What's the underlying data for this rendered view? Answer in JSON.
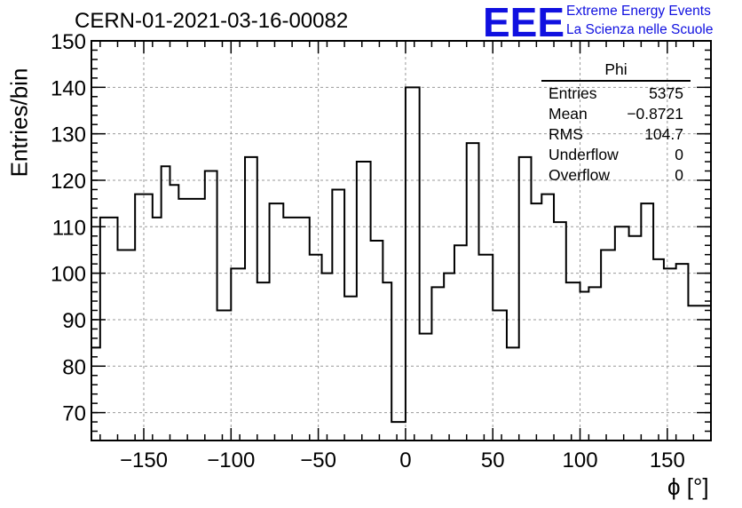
{
  "title": "CERN-01-2021-03-16-00082",
  "logo": {
    "mark": "EEE",
    "line1": "Extreme Energy Events",
    "line2": "La Scienza nelle Scuole"
  },
  "stats_box": {
    "title": "Phi",
    "rows": [
      {
        "label": "Entries",
        "value": "5375"
      },
      {
        "label": "Mean",
        "value": "−0.8721"
      },
      {
        "label": "RMS",
        "value": "104.7"
      },
      {
        "label": "Underflow",
        "value": "0"
      },
      {
        "label": "Overflow",
        "value": "0"
      }
    ]
  },
  "chart_data": {
    "type": "bar",
    "histogram_style": "step",
    "title": "CERN-01-2021-03-16-00082",
    "xlabel": "ϕ [°]",
    "ylabel": "Entries/bin",
    "xlim": [
      -180,
      175
    ],
    "ylim": [
      64,
      150
    ],
    "bin_width": 10,
    "x_ticks": [
      -150,
      -100,
      -50,
      0,
      50,
      100,
      150
    ],
    "x_tick_labels": [
      "−150",
      "−100",
      "−50",
      "0",
      "50",
      "100",
      "150"
    ],
    "y_ticks": [
      70,
      80,
      90,
      100,
      110,
      120,
      130,
      140,
      150
    ],
    "y_tick_labels": [
      "70",
      "80",
      "90",
      "100",
      "110",
      "120",
      "130",
      "140",
      "150"
    ],
    "grid": true,
    "bins": [
      {
        "x_low": -180,
        "value": 84
      },
      {
        "x_low": -175,
        "value": 112
      },
      {
        "x_low": -165,
        "value": 105
      },
      {
        "x_low": -155,
        "value": 117
      },
      {
        "x_low": -145,
        "value": 112
      },
      {
        "x_low": -140,
        "value": 123
      },
      {
        "x_low": -135,
        "value": 119
      },
      {
        "x_low": -130,
        "value": 116
      },
      {
        "x_low": -115,
        "value": 122
      },
      {
        "x_low": -108,
        "value": 92
      },
      {
        "x_low": -100,
        "value": 101
      },
      {
        "x_low": -92,
        "value": 125
      },
      {
        "x_low": -85,
        "value": 98
      },
      {
        "x_low": -78,
        "value": 115
      },
      {
        "x_low": -70,
        "value": 112
      },
      {
        "x_low": -55,
        "value": 104
      },
      {
        "x_low": -48,
        "value": 100
      },
      {
        "x_low": -42,
        "value": 118
      },
      {
        "x_low": -35,
        "value": 95
      },
      {
        "x_low": -28,
        "value": 124
      },
      {
        "x_low": -20,
        "value": 107
      },
      {
        "x_low": -13,
        "value": 98
      },
      {
        "x_low": -8,
        "value": 68
      },
      {
        "x_low": 0,
        "value": 140
      },
      {
        "x_low": 8,
        "value": 87
      },
      {
        "x_low": 15,
        "value": 97
      },
      {
        "x_low": 22,
        "value": 100
      },
      {
        "x_low": 28,
        "value": 106
      },
      {
        "x_low": 35,
        "value": 128
      },
      {
        "x_low": 42,
        "value": 104
      },
      {
        "x_low": 50,
        "value": 92
      },
      {
        "x_low": 58,
        "value": 84
      },
      {
        "x_low": 65,
        "value": 125
      },
      {
        "x_low": 72,
        "value": 115
      },
      {
        "x_low": 78,
        "value": 117
      },
      {
        "x_low": 85,
        "value": 111
      },
      {
        "x_low": 92,
        "value": 98
      },
      {
        "x_low": 100,
        "value": 96
      },
      {
        "x_low": 105,
        "value": 97
      },
      {
        "x_low": 112,
        "value": 105
      },
      {
        "x_low": 120,
        "value": 110
      },
      {
        "x_low": 128,
        "value": 108
      },
      {
        "x_low": 135,
        "value": 115
      },
      {
        "x_low": 142,
        "value": 103
      },
      {
        "x_low": 148,
        "value": 101
      },
      {
        "x_low": 155,
        "value": 102
      },
      {
        "x_low": 162,
        "value": 93
      },
      {
        "x_low": 170,
        "value": 93
      }
    ]
  }
}
